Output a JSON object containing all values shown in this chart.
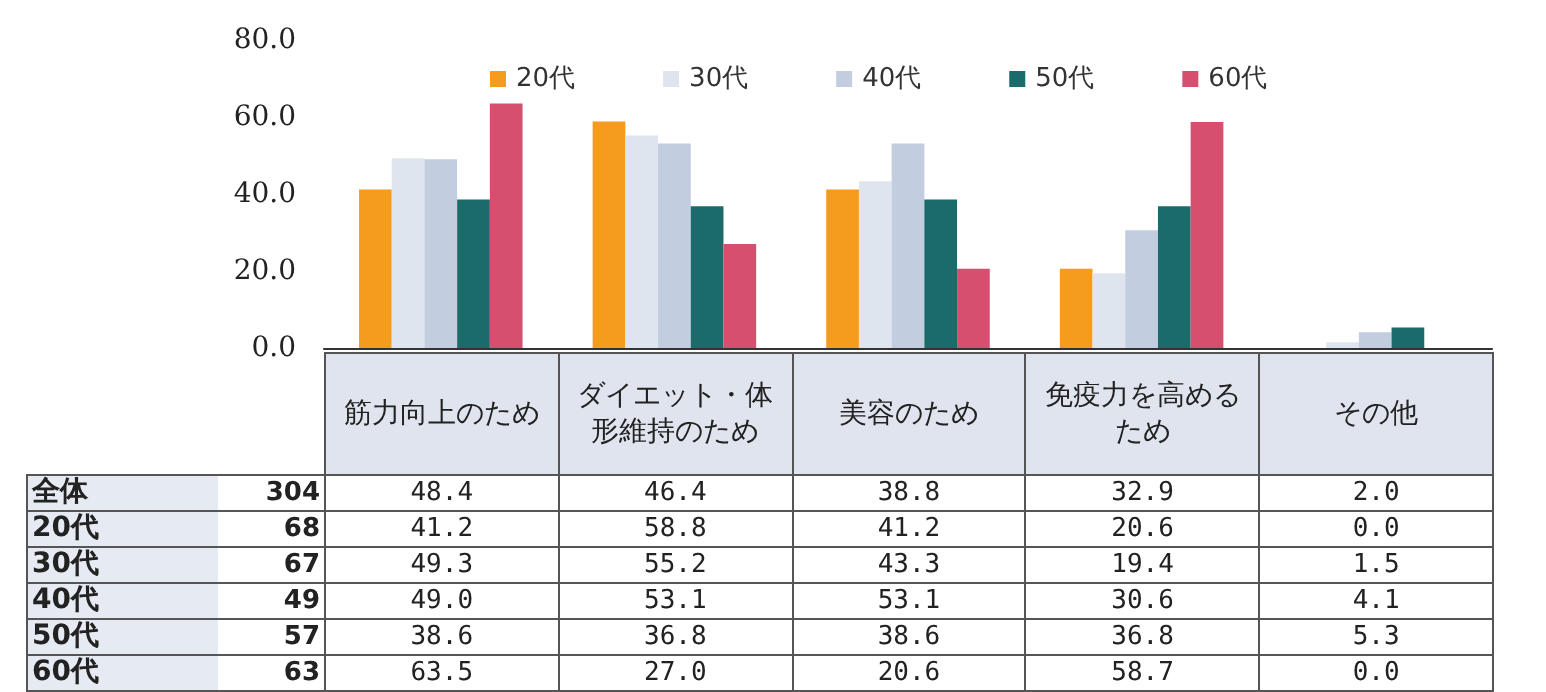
{
  "chart_data": {
    "type": "bar",
    "categories": [
      "筋力向上のため",
      "ダイエット・体形維持のため",
      "美容のため",
      "免疫力を高めるため",
      "その他"
    ],
    "series": [
      {
        "name": "20代",
        "color": "#f59c1e",
        "values": [
          41.2,
          58.8,
          41.2,
          20.6,
          0.0
        ],
        "value_labels": [
          "41.2",
          "58.8",
          "41.2",
          "20.6",
          "0.0"
        ]
      },
      {
        "name": "30代",
        "color": "#dfe5ee",
        "values": [
          49.3,
          55.2,
          43.3,
          19.4,
          1.5
        ],
        "value_labels": [
          "49.3",
          "55.2",
          "43.3",
          "19.4",
          "1.5"
        ]
      },
      {
        "name": "40代",
        "color": "#c2cde0",
        "values": [
          49.0,
          53.1,
          53.1,
          30.6,
          4.1
        ],
        "value_labels": [
          "49.0",
          "53.1",
          "53.1",
          "30.6",
          "4.1"
        ]
      },
      {
        "name": "50代",
        "color": "#1b6b6b",
        "values": [
          38.6,
          36.8,
          38.6,
          36.8,
          5.3
        ],
        "value_labels": [
          "38.6",
          "36.8",
          "38.6",
          "36.8",
          "5.3"
        ]
      },
      {
        "name": "60代",
        "color": "#d64f6f",
        "values": [
          63.5,
          27.0,
          20.6,
          58.7,
          0.0
        ],
        "value_labels": [
          "63.5",
          "27.0",
          "20.6",
          "58.7",
          "0.0"
        ]
      }
    ],
    "ylim": [
      0,
      80
    ],
    "yticks": [
      {
        "value": 0,
        "label": "0.0"
      },
      {
        "value": 20,
        "label": "20.0"
      },
      {
        "value": 40,
        "label": "40.0"
      },
      {
        "value": 60,
        "label": "60.0"
      },
      {
        "value": 80,
        "label": "80.0"
      }
    ],
    "legend": "top",
    "annotations": [
      "全体",
      "304",
      "48.4",
      "46.4",
      "38.8",
      "32.9",
      "2.0",
      "68",
      "67",
      "49",
      "57",
      "63"
    ]
  }
}
